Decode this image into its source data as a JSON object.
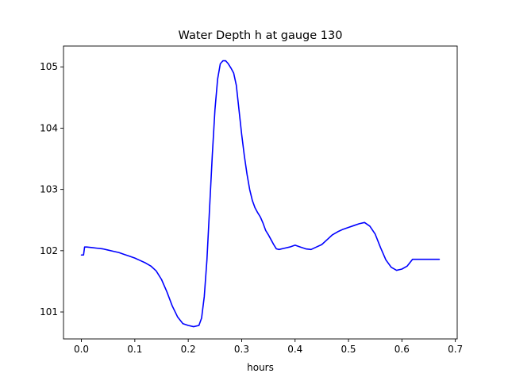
{
  "chart_data": {
    "type": "line",
    "title": "Water Depth h at gauge 130",
    "xlabel": "hours",
    "ylabel": "",
    "xlim": [
      -0.0335,
      0.7035
    ],
    "ylim": [
      100.56,
      105.34
    ],
    "xticks": [
      0.0,
      0.1,
      0.2,
      0.3,
      0.4,
      0.5,
      0.6,
      0.7
    ],
    "xtick_labels": [
      "0.0",
      "0.1",
      "0.2",
      "0.3",
      "0.4",
      "0.5",
      "0.6",
      "0.7"
    ],
    "yticks": [
      101,
      102,
      103,
      104,
      105
    ],
    "ytick_labels": [
      "101",
      "102",
      "103",
      "104",
      "105"
    ],
    "grid": false,
    "series": [
      {
        "color": "#0000ff",
        "x": [
          0.0,
          0.004,
          0.006,
          0.01,
          0.02,
          0.03,
          0.04,
          0.05,
          0.06,
          0.07,
          0.08,
          0.09,
          0.1,
          0.11,
          0.12,
          0.13,
          0.14,
          0.15,
          0.16,
          0.17,
          0.18,
          0.19,
          0.2,
          0.21,
          0.22,
          0.225,
          0.23,
          0.235,
          0.24,
          0.245,
          0.25,
          0.255,
          0.26,
          0.265,
          0.27,
          0.275,
          0.28,
          0.285,
          0.29,
          0.295,
          0.3,
          0.305,
          0.31,
          0.315,
          0.32,
          0.325,
          0.33,
          0.335,
          0.34,
          0.345,
          0.35,
          0.355,
          0.36,
          0.365,
          0.37,
          0.38,
          0.39,
          0.4,
          0.41,
          0.42,
          0.43,
          0.44,
          0.45,
          0.46,
          0.47,
          0.48,
          0.49,
          0.5,
          0.51,
          0.52,
          0.53,
          0.54,
          0.55,
          0.56,
          0.57,
          0.58,
          0.59,
          0.6,
          0.61,
          0.62,
          0.63,
          0.64,
          0.65,
          0.66,
          0.67
        ],
        "y": [
          101.93,
          101.93,
          102.06,
          102.06,
          102.05,
          102.04,
          102.03,
          102.01,
          101.99,
          101.97,
          101.94,
          101.91,
          101.88,
          101.84,
          101.8,
          101.75,
          101.67,
          101.53,
          101.33,
          101.1,
          100.92,
          100.81,
          100.78,
          100.76,
          100.78,
          100.9,
          101.25,
          101.85,
          102.7,
          103.55,
          104.3,
          104.8,
          105.05,
          105.1,
          105.1,
          105.05,
          104.98,
          104.9,
          104.7,
          104.3,
          103.9,
          103.55,
          103.25,
          103.0,
          102.82,
          102.7,
          102.62,
          102.55,
          102.45,
          102.33,
          102.26,
          102.18,
          102.1,
          102.03,
          102.02,
          102.04,
          102.06,
          102.09,
          102.06,
          102.03,
          102.02,
          102.06,
          102.1,
          102.18,
          102.26,
          102.31,
          102.35,
          102.38,
          102.41,
          102.44,
          102.46,
          102.4,
          102.27,
          102.05,
          101.85,
          101.73,
          101.68,
          101.7,
          101.75,
          101.86,
          101.86,
          101.86,
          101.86,
          101.86,
          101.86
        ]
      }
    ]
  }
}
